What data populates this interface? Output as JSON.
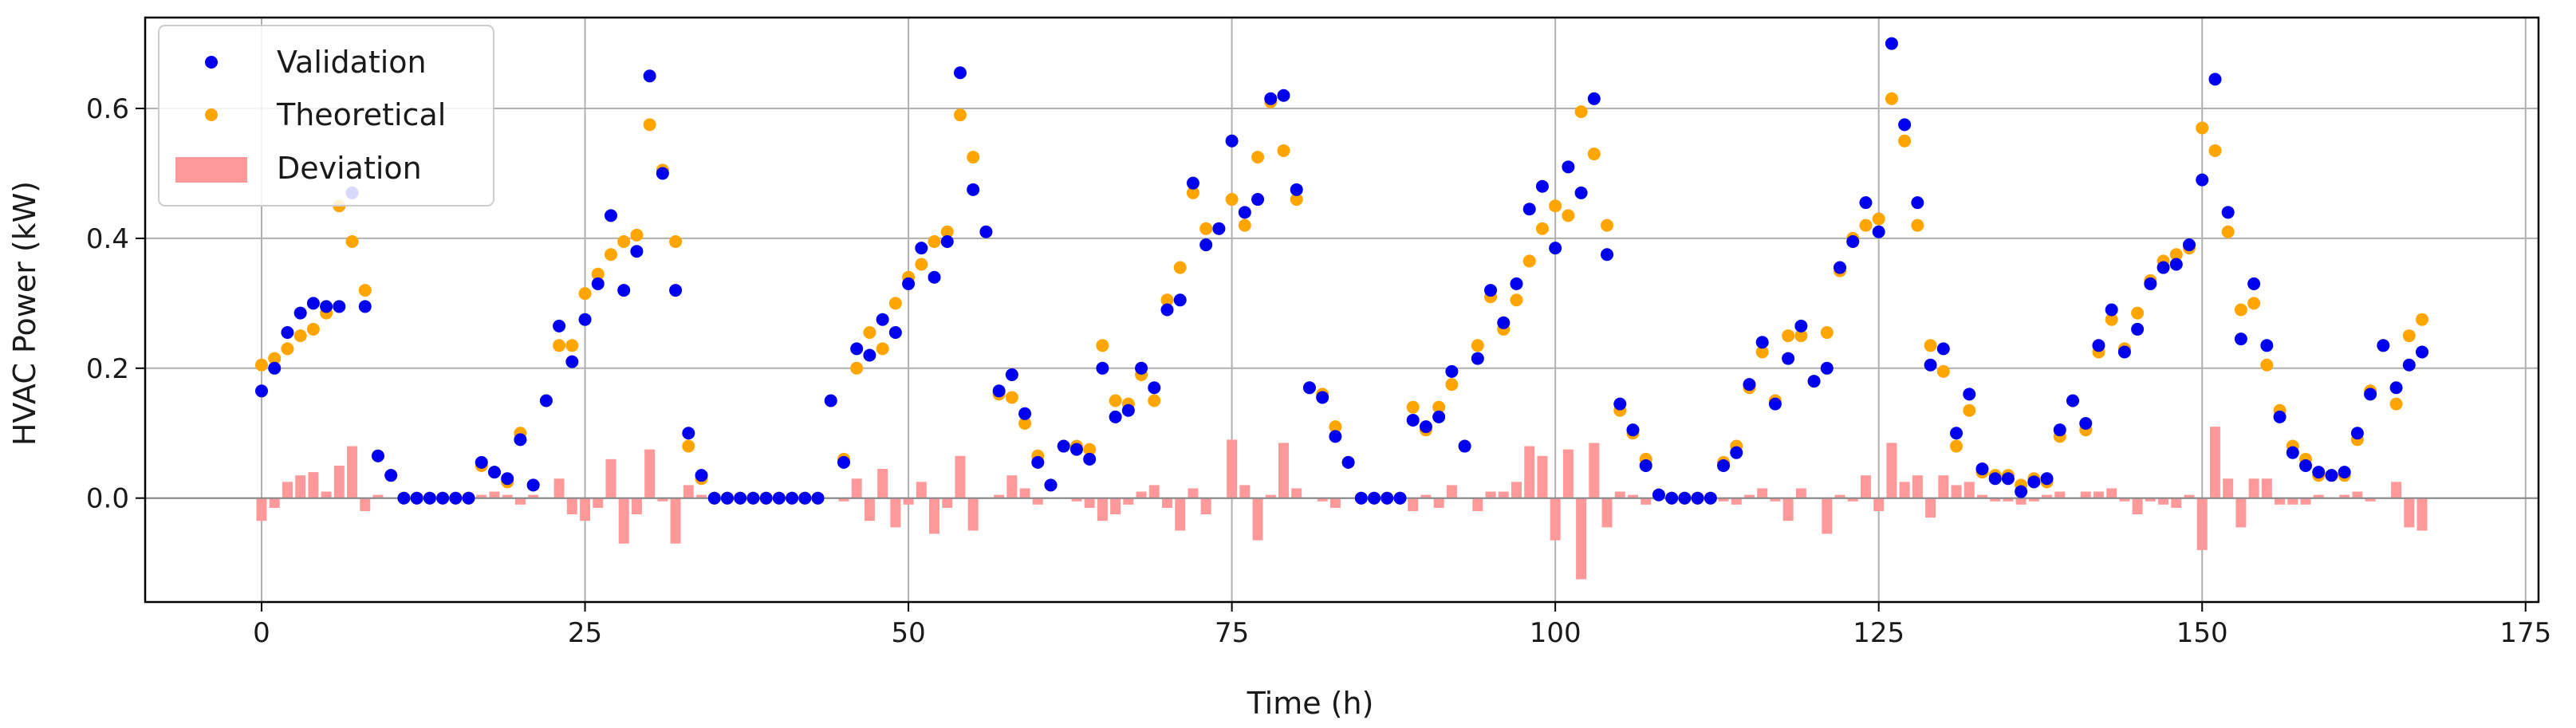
{
  "chart_data": {
    "type": "scatter",
    "title": "",
    "xlabel": "Time (h)",
    "ylabel": "HVAC Power (kW)",
    "xlim": [
      -9,
      176
    ],
    "ylim": [
      -0.16,
      0.74
    ],
    "xticks": [
      0,
      25,
      50,
      75,
      100,
      125,
      150,
      175
    ],
    "yticks": [
      0.0,
      0.2,
      0.4,
      0.6
    ],
    "ytick_labels": [
      "0.0",
      "0.2",
      "0.4",
      "0.6"
    ],
    "grid": true,
    "legend_position": "top-left",
    "colors": {
      "validation": "#0000ee",
      "theoretical": "#ffa500",
      "deviation": "#ff9999",
      "grid": "#b0b0b0",
      "axis": "#000000"
    },
    "legend": [
      {
        "label": "Validation",
        "marker": "dot",
        "color": "#0000ee"
      },
      {
        "label": "Theoretical",
        "marker": "dot",
        "color": "#ffa500"
      },
      {
        "label": "Deviation",
        "marker": "bar",
        "color": "#ff9999"
      }
    ],
    "series": [
      {
        "name": "Validation",
        "kind": "scatter",
        "x": [
          0,
          1,
          2,
          3,
          4,
          5,
          6,
          7,
          8,
          9,
          10,
          11,
          12,
          13,
          14,
          15,
          16,
          17,
          18,
          19,
          20,
          21,
          22,
          23,
          24,
          25,
          26,
          27,
          28,
          29,
          30,
          31,
          32,
          33,
          34,
          35,
          36,
          37,
          38,
          39,
          40,
          41,
          42,
          43,
          44,
          45,
          46,
          47,
          48,
          49,
          50,
          51,
          52,
          53,
          54,
          55,
          56,
          57,
          58,
          59,
          60,
          61,
          62,
          63,
          64,
          65,
          66,
          67,
          68,
          69,
          70,
          71,
          72,
          73,
          74,
          75,
          76,
          77,
          78,
          79,
          80,
          81,
          82,
          83,
          84,
          85,
          86,
          87,
          88,
          89,
          90,
          91,
          92,
          93,
          94,
          95,
          96,
          97,
          98,
          99,
          100,
          101,
          102,
          103,
          104,
          105,
          106,
          107,
          108,
          109,
          110,
          111,
          112,
          113,
          114,
          115,
          116,
          117,
          118,
          119,
          120,
          121,
          122,
          123,
          124,
          125,
          126,
          127,
          128,
          129,
          130,
          131,
          132,
          133,
          134,
          135,
          136,
          137,
          138,
          139,
          140,
          141,
          142,
          143,
          144,
          145,
          146,
          147,
          148,
          149,
          150,
          151,
          152,
          153,
          154,
          155,
          156,
          157,
          158,
          159,
          160,
          161,
          162,
          163,
          164,
          165,
          166,
          167
        ],
        "values": [
          0.165,
          0.2,
          0.255,
          0.285,
          0.3,
          0.295,
          0.295,
          0.47,
          0.295,
          0.065,
          0.035,
          0.0,
          0.0,
          0.0,
          0.0,
          0.0,
          0.0,
          0.055,
          0.04,
          0.03,
          0.09,
          0.02,
          0.15,
          0.265,
          0.21,
          0.275,
          0.33,
          0.435,
          0.32,
          0.38,
          0.65,
          0.5,
          0.32,
          0.1,
          0.035,
          0.0,
          0.0,
          0.0,
          0.0,
          0.0,
          0.0,
          0.0,
          0.0,
          0.0,
          0.15,
          0.055,
          0.23,
          0.22,
          0.275,
          0.255,
          0.33,
          0.385,
          0.34,
          0.395,
          0.655,
          0.475,
          0.41,
          0.165,
          0.19,
          0.13,
          0.055,
          0.02,
          0.08,
          0.075,
          0.06,
          0.2,
          0.125,
          0.135,
          0.2,
          0.17,
          0.29,
          0.305,
          0.485,
          0.39,
          0.415,
          0.55,
          0.44,
          0.46,
          0.615,
          0.62,
          0.475,
          0.17,
          0.155,
          0.095,
          0.055,
          0.0,
          0.0,
          0.0,
          0.0,
          0.12,
          0.11,
          0.125,
          0.195,
          0.08,
          0.215,
          0.32,
          0.27,
          0.33,
          0.445,
          0.48,
          0.385,
          0.51,
          0.47,
          0.615,
          0.375,
          0.145,
          0.105,
          0.05,
          0.005,
          0.0,
          0.0,
          0.0,
          0.0,
          0.05,
          0.07,
          0.175,
          0.24,
          0.145,
          0.215,
          0.265,
          0.18,
          0.2,
          0.355,
          0.395,
          0.455,
          0.41,
          0.7,
          0.575,
          0.455,
          0.205,
          0.23,
          0.1,
          0.16,
          0.045,
          0.03,
          0.03,
          0.01,
          0.025,
          0.03,
          0.105,
          0.15,
          0.115,
          0.235,
          0.29,
          0.225,
          0.26,
          0.33,
          0.355,
          0.36,
          0.39,
          0.49,
          0.645,
          0.44,
          0.245,
          0.33,
          0.235,
          0.125,
          0.07,
          0.05,
          0.04,
          0.035,
          0.04,
          0.1,
          0.16,
          0.235,
          0.17,
          0.205,
          0.225
        ]
      },
      {
        "name": "Theoretical",
        "kind": "scatter",
        "x": [
          0,
          1,
          2,
          3,
          4,
          5,
          6,
          7,
          8,
          9,
          10,
          11,
          12,
          13,
          14,
          15,
          16,
          17,
          18,
          19,
          20,
          21,
          22,
          23,
          24,
          25,
          26,
          27,
          28,
          29,
          30,
          31,
          32,
          33,
          34,
          35,
          36,
          37,
          38,
          39,
          40,
          41,
          42,
          43,
          44,
          45,
          46,
          47,
          48,
          49,
          50,
          51,
          52,
          53,
          54,
          55,
          56,
          57,
          58,
          59,
          60,
          61,
          62,
          63,
          64,
          65,
          66,
          67,
          68,
          69,
          70,
          71,
          72,
          73,
          74,
          75,
          76,
          77,
          78,
          79,
          80,
          81,
          82,
          83,
          84,
          85,
          86,
          87,
          88,
          89,
          90,
          91,
          92,
          93,
          94,
          95,
          96,
          97,
          98,
          99,
          100,
          101,
          102,
          103,
          104,
          105,
          106,
          107,
          108,
          109,
          110,
          111,
          112,
          113,
          114,
          115,
          116,
          117,
          118,
          119,
          120,
          121,
          122,
          123,
          124,
          125,
          126,
          127,
          128,
          129,
          130,
          131,
          132,
          133,
          134,
          135,
          136,
          137,
          138,
          139,
          140,
          141,
          142,
          143,
          144,
          145,
          146,
          147,
          148,
          149,
          150,
          151,
          152,
          153,
          154,
          155,
          156,
          157,
          158,
          159,
          160,
          161,
          162,
          163,
          164,
          165,
          166,
          167
        ],
        "values": [
          0.205,
          0.215,
          0.23,
          0.25,
          0.26,
          0.285,
          0.45,
          0.395,
          0.32,
          0.065,
          0.035,
          0.0,
          0.0,
          0.0,
          0.0,
          0.0,
          0.0,
          0.05,
          0.04,
          0.025,
          0.1,
          0.02,
          0.15,
          0.235,
          0.235,
          0.315,
          0.345,
          0.375,
          0.395,
          0.405,
          0.575,
          0.505,
          0.395,
          0.08,
          0.03,
          0.0,
          0.0,
          0.0,
          0.0,
          0.0,
          0.0,
          0.0,
          0.0,
          0.0,
          0.15,
          0.06,
          0.2,
          0.255,
          0.23,
          0.3,
          0.34,
          0.36,
          0.395,
          0.41,
          0.59,
          0.525,
          0.41,
          0.16,
          0.155,
          0.115,
          0.065,
          0.02,
          0.08,
          0.08,
          0.075,
          0.235,
          0.15,
          0.145,
          0.19,
          0.15,
          0.305,
          0.355,
          0.47,
          0.415,
          0.415,
          0.46,
          0.42,
          0.525,
          0.61,
          0.535,
          0.46,
          0.17,
          0.16,
          0.11,
          0.055,
          0.0,
          0.0,
          0.0,
          0.0,
          0.14,
          0.105,
          0.14,
          0.175,
          0.08,
          0.235,
          0.31,
          0.26,
          0.305,
          0.365,
          0.415,
          0.45,
          0.435,
          0.595,
          0.53,
          0.42,
          0.135,
          0.1,
          0.06,
          0.005,
          0.0,
          0.0,
          0.0,
          0.0,
          0.055,
          0.08,
          0.17,
          0.225,
          0.15,
          0.25,
          0.25,
          0.18,
          0.255,
          0.35,
          0.4,
          0.42,
          0.43,
          0.615,
          0.55,
          0.42,
          0.235,
          0.195,
          0.08,
          0.135,
          0.04,
          0.035,
          0.035,
          0.02,
          0.03,
          0.025,
          0.095,
          0.15,
          0.105,
          0.225,
          0.275,
          0.23,
          0.285,
          0.335,
          0.365,
          0.375,
          0.385,
          0.57,
          0.535,
          0.41,
          0.29,
          0.3,
          0.205,
          0.135,
          0.08,
          0.06,
          0.035,
          0.035,
          0.035,
          0.09,
          0.165,
          0.235,
          0.145,
          0.25,
          0.275
        ]
      },
      {
        "name": "Deviation",
        "kind": "bar",
        "x": [
          0,
          1,
          2,
          3,
          4,
          5,
          6,
          7,
          8,
          9,
          10,
          11,
          12,
          13,
          14,
          15,
          16,
          17,
          18,
          19,
          20,
          21,
          22,
          23,
          24,
          25,
          26,
          27,
          28,
          29,
          30,
          31,
          32,
          33,
          34,
          35,
          36,
          37,
          38,
          39,
          40,
          41,
          42,
          43,
          44,
          45,
          46,
          47,
          48,
          49,
          50,
          51,
          52,
          53,
          54,
          55,
          56,
          57,
          58,
          59,
          60,
          61,
          62,
          63,
          64,
          65,
          66,
          67,
          68,
          69,
          70,
          71,
          72,
          73,
          74,
          75,
          76,
          77,
          78,
          79,
          80,
          81,
          82,
          83,
          84,
          85,
          86,
          87,
          88,
          89,
          90,
          91,
          92,
          93,
          94,
          95,
          96,
          97,
          98,
          99,
          100,
          101,
          102,
          103,
          104,
          105,
          106,
          107,
          108,
          109,
          110,
          111,
          112,
          113,
          114,
          115,
          116,
          117,
          118,
          119,
          120,
          121,
          122,
          123,
          124,
          125,
          126,
          127,
          128,
          129,
          130,
          131,
          132,
          133,
          134,
          135,
          136,
          137,
          138,
          139,
          140,
          141,
          142,
          143,
          144,
          145,
          146,
          147,
          148,
          149,
          150,
          151,
          152,
          153,
          154,
          155,
          156,
          157,
          158,
          159,
          160,
          161,
          162,
          163,
          164,
          165,
          166,
          167
        ],
        "values": [
          -0.035,
          -0.015,
          0.025,
          0.035,
          0.04,
          0.01,
          0.05,
          0.08,
          -0.02,
          0.005,
          0.0,
          0.0,
          0.0,
          0.0,
          0.0,
          0.0,
          0.0,
          0.005,
          0.01,
          0.005,
          -0.01,
          0.005,
          0.0,
          0.03,
          -0.025,
          -0.035,
          -0.015,
          0.06,
          -0.07,
          -0.025,
          0.075,
          -0.005,
          -0.07,
          0.02,
          0.005,
          0.0,
          0.0,
          0.0,
          0.0,
          0.0,
          0.0,
          0.0,
          0.0,
          0.0,
          0.0,
          -0.005,
          0.03,
          -0.035,
          0.045,
          -0.045,
          -0.01,
          0.025,
          -0.055,
          -0.015,
          0.065,
          -0.05,
          0.0,
          0.005,
          0.035,
          0.015,
          -0.01,
          0.0,
          0.0,
          -0.005,
          -0.015,
          -0.035,
          -0.025,
          -0.01,
          0.01,
          0.02,
          -0.015,
          -0.05,
          0.015,
          -0.025,
          0.0,
          0.09,
          0.02,
          -0.065,
          0.005,
          0.085,
          0.015,
          0.0,
          -0.005,
          -0.015,
          0.0,
          0.0,
          0.0,
          0.0,
          0.0,
          -0.02,
          0.005,
          -0.015,
          0.02,
          0.0,
          -0.02,
          0.01,
          0.01,
          0.025,
          0.08,
          0.065,
          -0.065,
          0.075,
          -0.125,
          0.085,
          -0.045,
          0.01,
          0.005,
          -0.01,
          0.0,
          0.0,
          0.0,
          0.0,
          0.0,
          -0.005,
          -0.01,
          0.005,
          0.015,
          -0.005,
          -0.035,
          0.015,
          0.0,
          -0.055,
          0.005,
          -0.005,
          0.035,
          -0.02,
          0.085,
          0.025,
          0.035,
          -0.03,
          0.035,
          0.02,
          0.025,
          0.005,
          -0.005,
          -0.005,
          -0.01,
          -0.005,
          0.005,
          0.01,
          0.0,
          0.01,
          0.01,
          0.015,
          -0.005,
          -0.025,
          -0.005,
          -0.01,
          -0.015,
          0.005,
          -0.08,
          0.11,
          0.03,
          -0.045,
          0.03,
          0.03,
          -0.01,
          -0.01,
          -0.01,
          0.005,
          0.0,
          0.005,
          0.01,
          -0.005,
          0.0,
          0.025,
          -0.045,
          -0.05
        ]
      }
    ]
  }
}
